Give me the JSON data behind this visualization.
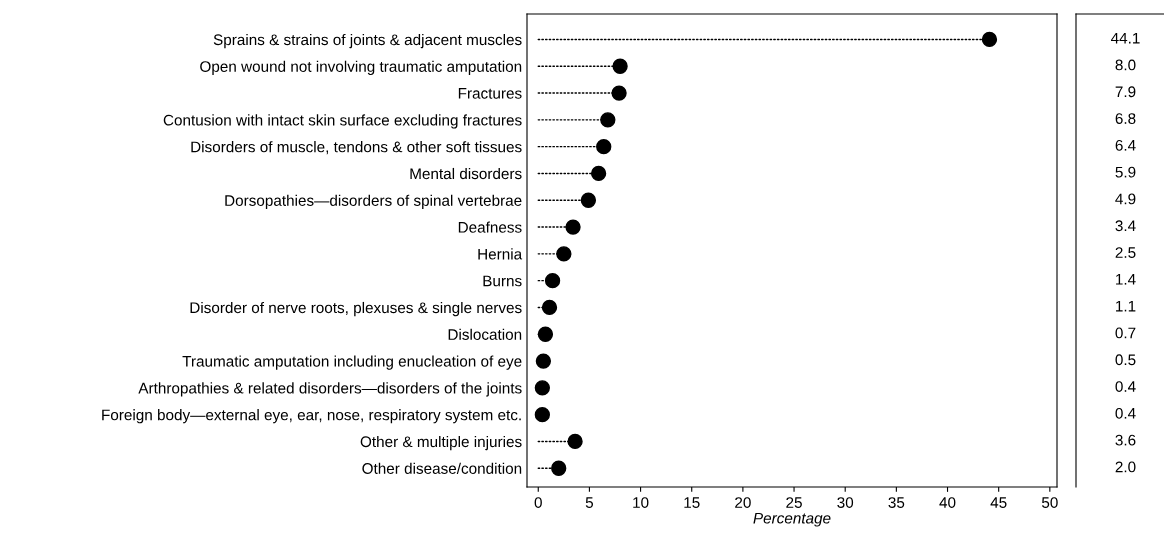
{
  "chart_data": [
    {
      "type": "lollipop",
      "orientation": "horizontal",
      "categories": [
        "Sprains & strains of joints & adjacent muscles",
        "Open wound not involving traumatic amputation",
        "Fractures",
        "Contusion with intact skin surface excluding fractures",
        "Disorders of muscle, tendons & other soft tissues",
        "Mental disorders",
        "Dorsopathies—disorders of spinal vertebrae",
        "Deafness",
        "Hernia",
        "Burns",
        "Disorder of nerve roots, plexuses & single nerves",
        "Dislocation",
        "Traumatic amputation including enucleation of eye",
        "Arthropathies & related disorders—disorders of the joints",
        "Foreign body—external eye, ear, nose, respiratory system etc.",
        "Other & multiple injuries",
        "Other disease/condition"
      ],
      "values": [
        44.1,
        8.0,
        7.9,
        6.8,
        6.4,
        5.9,
        4.9,
        3.4,
        2.5,
        1.4,
        1.1,
        0.7,
        0.5,
        0.4,
        0.4,
        3.6,
        2.0
      ],
      "color": "#000000",
      "marker": "circle",
      "line_style": "dotted",
      "xlabel": "Percentage",
      "xlim": [
        -1.1,
        50.7
      ],
      "xticks": [
        0,
        5,
        10,
        15,
        20,
        25,
        30,
        35,
        40,
        45,
        50
      ]
    },
    {
      "type": "other",
      "annotations": [
        "44.1",
        "8.0",
        "7.9",
        "6.8",
        "6.4",
        "5.9",
        "4.9",
        "3.4",
        "2.5",
        "1.4",
        "1.1",
        "0.7",
        "0.5",
        "0.4",
        "0.4",
        "3.6",
        "2.0"
      ]
    }
  ]
}
